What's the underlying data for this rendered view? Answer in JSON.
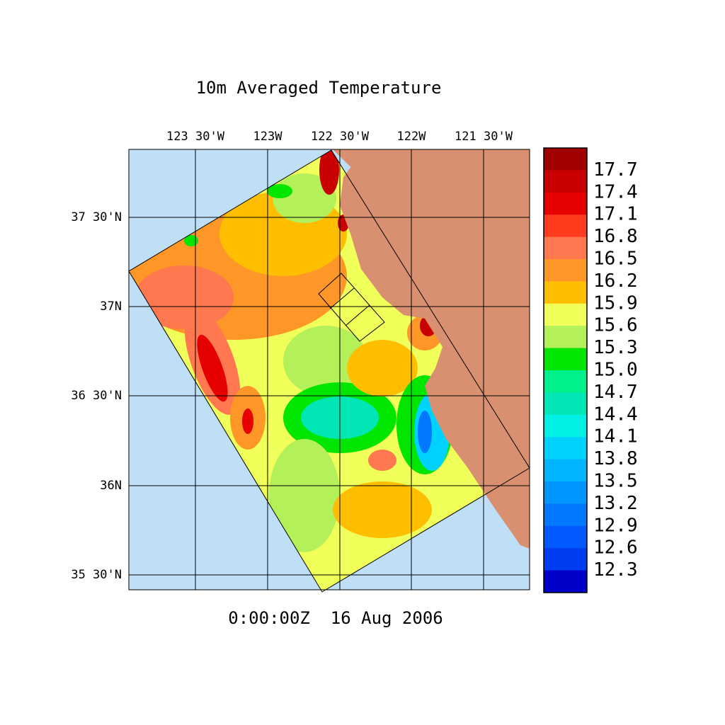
{
  "title": "10m Averaged Temperature",
  "time_label": "0:00:00Z  16 Aug 2006",
  "longitude_labels": [
    "123 30'W",
    "123W",
    "122 30'W",
    "122W",
    "121 30'W"
  ],
  "latitude_labels": [
    "37 30'N",
    "37N",
    "36 30'N",
    "36N",
    "35 30'N"
  ],
  "colorbar": {
    "labels": [
      "17.7",
      "17.4",
      "17.1",
      "16.8",
      "16.5",
      "16.2",
      "15.9",
      "15.6",
      "15.3",
      "15.0",
      "14.7",
      "14.4",
      "14.1",
      "13.8",
      "13.5",
      "13.2",
      "12.9",
      "12.6",
      "12.3"
    ],
    "colors": [
      "#a00000",
      "#c80000",
      "#e60000",
      "#ff3c1e",
      "#ff7850",
      "#ff9628",
      "#ffbe00",
      "#f0ff5a",
      "#b4f05a",
      "#00e600",
      "#00f08c",
      "#00e6b4",
      "#00f0e6",
      "#00d2ff",
      "#00b4ff",
      "#0096ff",
      "#0078ff",
      "#005aff",
      "#003cf0",
      "#0000c8"
    ]
  }
}
